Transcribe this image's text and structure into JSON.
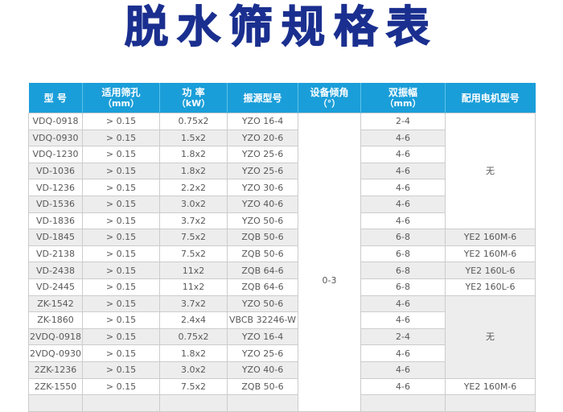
{
  "title": "脱水筛规格表",
  "colors": {
    "title": "#1a2f8f",
    "header_background": "#1a9ed9",
    "header_divider": "#5cc2e8",
    "row_stripe": "#ededed",
    "cell_border": "#cccccc",
    "cell_text": "#595959"
  },
  "table": {
    "headers": [
      {
        "key": "model",
        "line1": "型 号",
        "line2": ""
      },
      {
        "key": "mesh",
        "line1": "适用筛孔",
        "line2": "（mm）"
      },
      {
        "key": "power",
        "line1": "功 率",
        "line2": "（kW）"
      },
      {
        "key": "source",
        "line1": "振源型号",
        "line2": ""
      },
      {
        "key": "inclination",
        "line1": "设备倾角",
        "line2": "（°）"
      },
      {
        "key": "amplitude",
        "line1": "双振幅",
        "line2": "（mm）"
      },
      {
        "key": "motor",
        "line1": "配用电机型号",
        "line2": ""
      }
    ],
    "inclination_value": "0-3",
    "rows": [
      {
        "model": "VDQ-0918",
        "mesh": "> 0.15",
        "power": "0.75x2",
        "source": "YZO 16-4",
        "amplitude": "2-4",
        "motor": {
          "text": "无",
          "rowspan": 7
        }
      },
      {
        "model": "VDQ-0930",
        "mesh": "> 0.15",
        "power": "1.5x2",
        "source": "YZO 20-6",
        "amplitude": "4-6"
      },
      {
        "model": "VDQ-1230",
        "mesh": "> 0.15",
        "power": "1.8x2",
        "source": "YZO 25-6",
        "amplitude": "4-6"
      },
      {
        "model": "VD-1036",
        "mesh": "> 0.15",
        "power": "1.8x2",
        "source": "YZO 25-6",
        "amplitude": "4-6"
      },
      {
        "model": "VD-1236",
        "mesh": "> 0.15",
        "power": "2.2x2",
        "source": "YZO 30-6",
        "amplitude": "4-6"
      },
      {
        "model": "VD-1536",
        "mesh": "> 0.15",
        "power": "3.0x2",
        "source": "YZO 40-6",
        "amplitude": "4-6"
      },
      {
        "model": "VD-1836",
        "mesh": "> 0.15",
        "power": "3.7x2",
        "source": "YZO 50-6",
        "amplitude": "4-6"
      },
      {
        "model": "VD-1845",
        "mesh": "> 0.15",
        "power": "7.5x2",
        "source": "ZQB 50-6",
        "amplitude": "6-8",
        "motor": {
          "text": "YE2 160M-6",
          "rowspan": 1
        }
      },
      {
        "model": "VD-2138",
        "mesh": "> 0.15",
        "power": "7.5x2",
        "source": "ZQB 50-6",
        "amplitude": "6-8",
        "motor": {
          "text": "YE2 160M-6",
          "rowspan": 1
        }
      },
      {
        "model": "VD-2438",
        "mesh": "> 0.15",
        "power": "11x2",
        "source": "ZQB 64-6",
        "amplitude": "6-8",
        "motor": {
          "text": "YE2 160L-6",
          "rowspan": 1
        }
      },
      {
        "model": "VD-2445",
        "mesh": "> 0.15",
        "power": "11x2",
        "source": "ZQB 64-6",
        "amplitude": "6-8",
        "motor": {
          "text": "YE2 160L-6",
          "rowspan": 1
        }
      },
      {
        "model": "ZK-1542",
        "mesh": "> 0.15",
        "power": "3.7x2",
        "source": "YZO 50-6",
        "amplitude": "4-6",
        "motor": {
          "text": "无",
          "rowspan": 5
        }
      },
      {
        "model": "ZK-1860",
        "mesh": "> 0.15",
        "power": "2.4x4",
        "source": "VBCB 32246-W",
        "amplitude": "4-6"
      },
      {
        "model": "2VDQ-0918",
        "mesh": "> 0.15",
        "power": "0.75x2",
        "source": "YZO 16-4",
        "amplitude": "2-4"
      },
      {
        "model": "2VDQ-0930",
        "mesh": "> 0.15",
        "power": "1.8x2",
        "source": "YZO 25-6",
        "amplitude": "4-6"
      },
      {
        "model": "2ZK-1236",
        "mesh": "> 0.15",
        "power": "3.0x2",
        "source": "YZO 40-6",
        "amplitude": "4-6"
      },
      {
        "model": "2ZK-1550",
        "mesh": "> 0.15",
        "power": "7.5x2",
        "source": "ZQB 50-6",
        "amplitude": "4-6",
        "motor": {
          "text": "YE2 160M-6",
          "rowspan": 1
        }
      }
    ]
  }
}
